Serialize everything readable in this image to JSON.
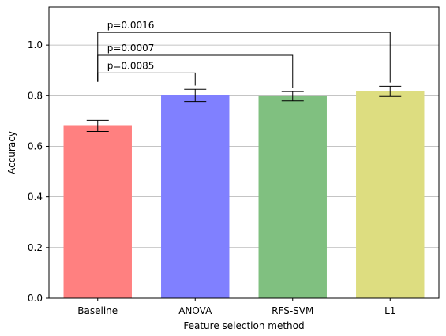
{
  "chart_data": {
    "type": "bar",
    "categories": [
      "Baseline",
      "ANOVA",
      "RFS-SVM",
      "L1"
    ],
    "values": [
      0.681,
      0.801,
      0.798,
      0.817
    ],
    "errors": [
      0.022,
      0.024,
      0.018,
      0.02
    ],
    "colors": [
      "#ff8080",
      "#8080ff",
      "#80c080",
      "#dddd80"
    ],
    "xlabel": "Feature selection method",
    "ylabel": "Accuracy",
    "ylim": [
      0,
      1.15
    ],
    "yticks": [
      0.0,
      0.2,
      0.4,
      0.6,
      0.8,
      1.0
    ],
    "ytick_labels": [
      "0.0",
      "0.2",
      "0.4",
      "0.6",
      "0.8",
      "1.0"
    ],
    "grid": "y",
    "significance": [
      {
        "from": 0,
        "to": 1,
        "label": "p=0.0085",
        "height": 0.89
      },
      {
        "from": 0,
        "to": 2,
        "label": "p=0.0007",
        "height": 0.96
      },
      {
        "from": 0,
        "to": 3,
        "label": "p=0.0016",
        "height": 1.05
      }
    ]
  }
}
